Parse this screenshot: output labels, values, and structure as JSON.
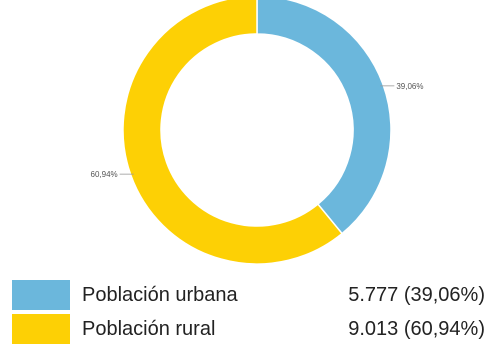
{
  "chart_data": {
    "type": "pie",
    "variant": "donut",
    "title": "",
    "categories": [
      "Población urbana",
      "Población rural"
    ],
    "values": [
      5777,
      9013
    ],
    "percent_labels": [
      "39,06%",
      "60,94%"
    ],
    "legend_values": [
      "5.777 (39,06%)",
      "9.013 (60,94%)"
    ],
    "colors": [
      "#6BB7DC",
      "#FDD005"
    ],
    "legend": "bottom",
    "start_angle_deg": 0,
    "direction": "clockwise"
  }
}
